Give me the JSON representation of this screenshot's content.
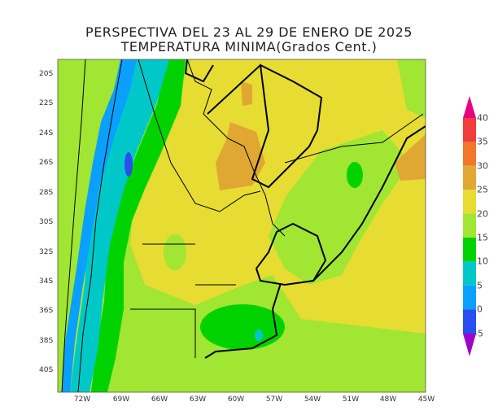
{
  "title": {
    "line1": "PERSPECTIVA DEL 23 AL 29 DE ENERO DE 2025",
    "line2": "TEMPERATURA MINIMA(Grados Cent.)"
  },
  "map": {
    "lat_labels": [
      "20S",
      "22S",
      "24S",
      "26S",
      "28S",
      "30S",
      "32S",
      "34S",
      "36S",
      "38S",
      "40S"
    ],
    "lon_labels": [
      "72W",
      "69W",
      "66W",
      "63W",
      "60W",
      "57W",
      "54W",
      "51W",
      "48W",
      "45W"
    ]
  },
  "legend": {
    "labels": [
      "40",
      "35",
      "30",
      "25",
      "20",
      "15",
      "10",
      "5",
      "0",
      "-5"
    ],
    "colors": {
      "above_40": "#e8007e",
      "35_40": "#f03c3c",
      "30_35": "#f07828",
      "25_30": "#e0a832",
      "20_25": "#e6dc32",
      "15_20": "#a0e632",
      "10_15": "#00d200",
      "5_10": "#00c8c8",
      "0_5": "#0aa0ff",
      "minus5_0": "#2850f0",
      "below_minus5": "#a000c8"
    }
  }
}
